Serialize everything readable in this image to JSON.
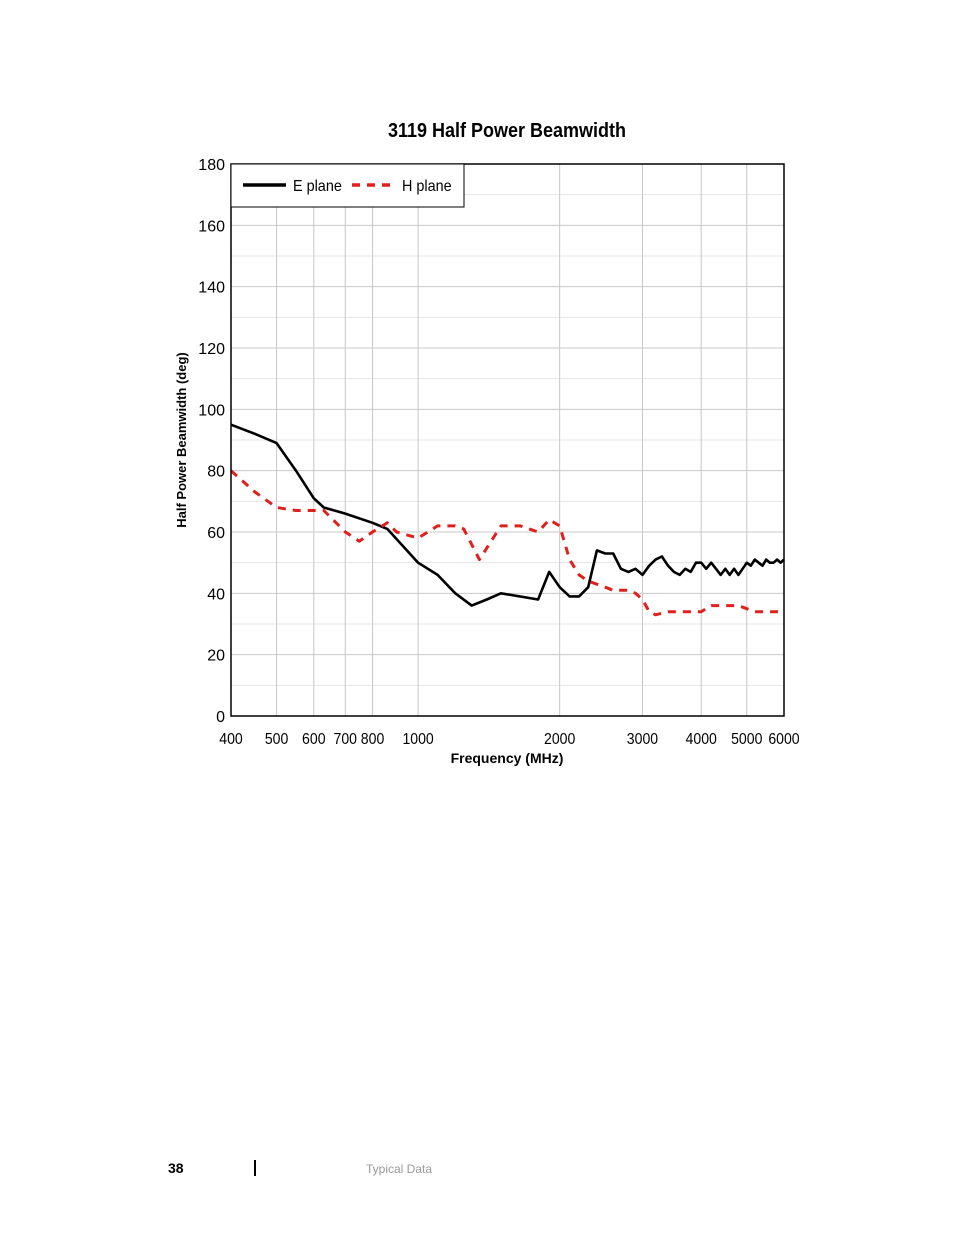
{
  "chart_data": {
    "type": "line",
    "title": "3119 Half Power Beamwidth",
    "xlabel": "Frequency (MHz)",
    "ylabel": "Half Power Beamwidth (deg)",
    "xscale": "log",
    "xlim": [
      400,
      6000
    ],
    "ylim": [
      0,
      180
    ],
    "xticks": [
      400,
      500,
      600,
      700,
      800,
      1000,
      2000,
      3000,
      4000,
      5000,
      6000
    ],
    "xtick_labels": [
      "400",
      "500",
      "600",
      "700",
      "800",
      "1000",
      "2000",
      "3000",
      "4000",
      "5000",
      "6000"
    ],
    "yticks": [
      0,
      20,
      40,
      60,
      80,
      100,
      120,
      140,
      160,
      180
    ],
    "ytick_labels": [
      "0",
      "20",
      "40",
      "60",
      "80",
      "100",
      "120",
      "140",
      "160",
      "180"
    ],
    "grid": true,
    "legend_position": "top-left",
    "series": [
      {
        "name": "E plane",
        "color": "#000000",
        "style": "solid",
        "x": [
          400,
          450,
          500,
          550,
          600,
          630,
          700,
          800,
          860,
          1000,
          1100,
          1200,
          1300,
          1400,
          1500,
          1800,
          1900,
          2000,
          2100,
          2200,
          2300,
          2400,
          2500,
          2600,
          2700,
          2800,
          2900,
          3000,
          3100,
          3200,
          3300,
          3400,
          3500,
          3600,
          3700,
          3800,
          3900,
          4000,
          4100,
          4200,
          4300,
          4400,
          4500,
          4600,
          4700,
          4800,
          4900,
          5000,
          5100,
          5200,
          5300,
          5400,
          5500,
          5600,
          5700,
          5800,
          5900,
          6000
        ],
        "y": [
          95,
          92,
          89,
          80,
          71,
          68,
          66,
          63,
          61,
          50,
          46,
          40,
          36,
          38,
          40,
          38,
          47,
          42,
          39,
          39,
          42,
          54,
          53,
          53,
          48,
          47,
          48,
          46,
          49,
          51,
          52,
          49,
          47,
          46,
          48,
          47,
          50,
          50,
          48,
          50,
          48,
          46,
          48,
          46,
          48,
          46,
          48,
          50,
          49,
          51,
          50,
          49,
          51,
          50,
          50,
          51,
          50,
          51
        ]
      },
      {
        "name": "H plane",
        "color": "#e0201c",
        "style": "dashed",
        "x": [
          400,
          450,
          500,
          550,
          600,
          630,
          700,
          750,
          800,
          860,
          900,
          1000,
          1100,
          1200,
          1250,
          1350,
          1500,
          1650,
          1800,
          1900,
          2000,
          2100,
          2200,
          2300,
          2500,
          2600,
          2700,
          2800,
          2900,
          3000,
          3100,
          3200,
          3400,
          3600,
          3800,
          4000,
          4200,
          4500,
          4800,
          5000,
          5200,
          5500,
          6000
        ],
        "y": [
          80,
          73,
          68,
          67,
          67,
          67,
          60,
          57,
          60,
          63,
          60,
          58,
          62,
          62,
          61,
          51,
          62,
          62,
          60,
          64,
          62,
          51,
          46,
          44,
          42,
          41,
          41,
          41,
          40,
          38,
          34,
          33,
          34,
          34,
          34,
          34,
          36,
          36,
          36,
          35,
          34,
          34,
          34
        ]
      }
    ]
  },
  "footer": {
    "page_number": "38",
    "section": "Typical Data"
  }
}
